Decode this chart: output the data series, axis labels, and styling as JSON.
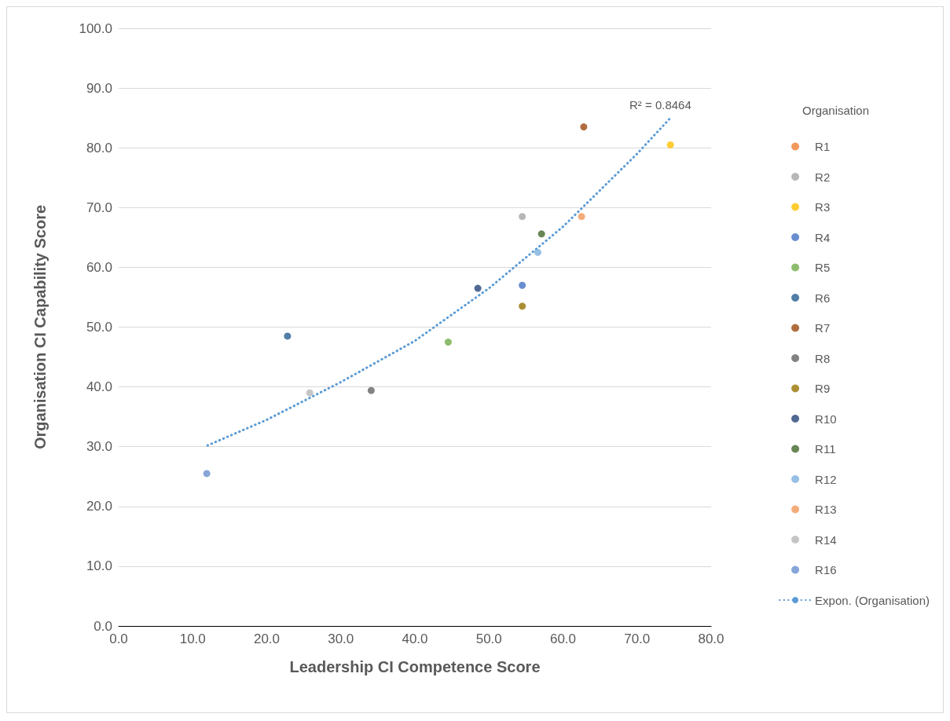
{
  "chart_data": {
    "type": "scatter",
    "xlabel": "Leadership CI Competence Score",
    "ylabel": "Organisation CI Capability Score",
    "legend_title": "Organisation",
    "xlim": [
      0,
      80
    ],
    "xticks": [
      {
        "value": 0,
        "label": "0.0"
      },
      {
        "value": 10,
        "label": "10.0"
      },
      {
        "value": 20,
        "label": "20.0"
      },
      {
        "value": 30,
        "label": "30.0"
      },
      {
        "value": 40,
        "label": "40.0"
      },
      {
        "value": 50,
        "label": "50.0"
      },
      {
        "value": 60,
        "label": "60.0"
      },
      {
        "value": 70,
        "label": "70.0"
      },
      {
        "value": 80,
        "label": "80.0"
      }
    ],
    "ylim": [
      0,
      100
    ],
    "yticks": [
      {
        "value": 0,
        "label": "0.0"
      },
      {
        "value": 10,
        "label": "10.0"
      },
      {
        "value": 20,
        "label": "20.0"
      },
      {
        "value": 30,
        "label": "30.0"
      },
      {
        "value": 40,
        "label": "40.0"
      },
      {
        "value": 50,
        "label": "50.0"
      },
      {
        "value": 60,
        "label": "60.0"
      },
      {
        "value": 70,
        "label": "70.0"
      },
      {
        "value": 80,
        "label": "80.0"
      },
      {
        "value": 90,
        "label": "90.0"
      },
      {
        "value": 100,
        "label": "100.0"
      }
    ],
    "grid": "y",
    "legend": "right",
    "marker": "circle",
    "annotations": [
      "R² = 0.8464"
    ],
    "series": [
      {
        "name": "R1",
        "color": "#ed7d31",
        "x": [
          null
        ],
        "values": [
          null
        ]
      },
      {
        "name": "R2",
        "color": "#a5a5a5",
        "x": [
          54.5
        ],
        "values": [
          68.5
        ]
      },
      {
        "name": "R3",
        "color": "#ffc000",
        "x": [
          74.5
        ],
        "values": [
          80.5
        ]
      },
      {
        "name": "R4",
        "color": "#4472c4",
        "x": [
          54.5
        ],
        "values": [
          57.0
        ]
      },
      {
        "name": "R5",
        "color": "#70ad47",
        "x": [
          44.5
        ],
        "values": [
          47.5
        ]
      },
      {
        "name": "R6",
        "color": "#255e91",
        "x": [
          22.8
        ],
        "values": [
          48.5
        ]
      },
      {
        "name": "R7",
        "color": "#9e480e",
        "x": [
          62.8
        ],
        "values": [
          83.5
        ]
      },
      {
        "name": "R8",
        "color": "#636363",
        "x": [
          34.1
        ],
        "values": [
          39.4
        ]
      },
      {
        "name": "R9",
        "color": "#997300",
        "x": [
          54.5
        ],
        "values": [
          53.5
        ]
      },
      {
        "name": "R10",
        "color": "#264478",
        "x": [
          48.5
        ],
        "values": [
          56.5
        ]
      },
      {
        "name": "R11",
        "color": "#43682b",
        "x": [
          57.1
        ],
        "values": [
          65.6
        ]
      },
      {
        "name": "R12",
        "color": "#7cafdd",
        "x": [
          56.6
        ],
        "values": [
          62.5
        ]
      },
      {
        "name": "R13",
        "color": "#f1975a",
        "x": [
          62.5
        ],
        "values": [
          68.5
        ]
      },
      {
        "name": "R14",
        "color": "#b7b7b7",
        "x": [
          25.8
        ],
        "values": [
          39.0
        ]
      },
      {
        "name": "R16",
        "color": "#698ed0",
        "x": [
          11.9
        ],
        "values": [
          25.5
        ]
      },
      {
        "name": "Expon. (Organisation)",
        "type": "line",
        "color": "#5b9bd5",
        "line_style": "dotted",
        "marker": "none",
        "x": [
          12,
          20,
          30,
          40,
          50,
          60,
          70,
          74.5
        ],
        "values": [
          30.2,
          34.5,
          40.8,
          47.7,
          56.5,
          66.8,
          79.0,
          85.0
        ]
      }
    ]
  }
}
